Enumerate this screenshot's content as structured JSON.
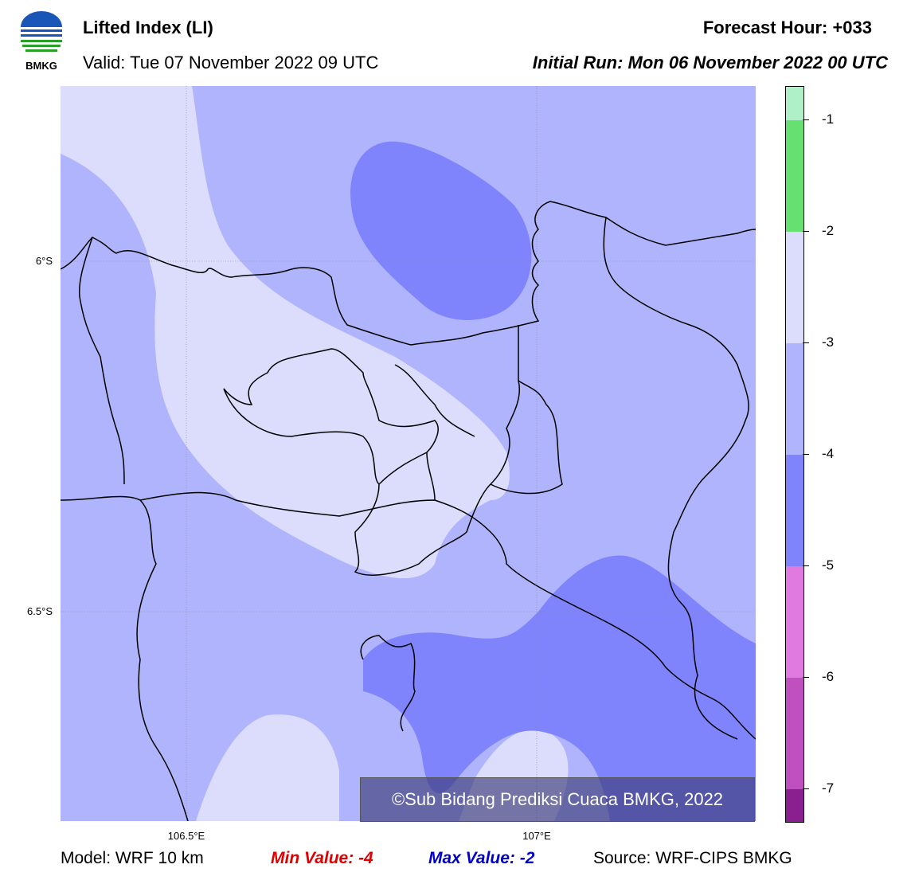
{
  "header": {
    "title": "Lifted Index (LI)",
    "valid": "Valid: Tue 07 November 2022 09 UTC",
    "forecast_hour": "Forecast Hour: +033",
    "initial_run": "Initial Run: Mon 06 November 2022 00 UTC",
    "logo_text": "BMKG"
  },
  "map": {
    "lat_labels": [
      "6°S",
      "6.5°S"
    ],
    "lon_labels": [
      "106.5°E",
      "107°E"
    ],
    "copyright": "©Sub Bidang Prediksi Cuaca BMKG, 2022"
  },
  "colorbar": {
    "ticks": [
      "-1",
      "-2",
      "-3",
      "-4",
      "-5",
      "-6",
      "-7"
    ],
    "colors": [
      "#b0f0c8",
      "#66e070",
      "#dcdcfc",
      "#b0b4fc",
      "#8084fc",
      "#e07ae0",
      "#c050c0",
      "#a030a0",
      "#8a2090"
    ]
  },
  "footer": {
    "model": "Model: WRF 10 km",
    "min_value": "Min Value: -4",
    "max_value": "Max Value: -2",
    "source": "Source: WRF-CIPS BMKG"
  },
  "colors": {
    "level_neg2_to_neg3": "#dcdcfc",
    "level_neg3_to_neg4": "#b0b4fc",
    "level_neg4_to_neg5": "#8084fc"
  }
}
